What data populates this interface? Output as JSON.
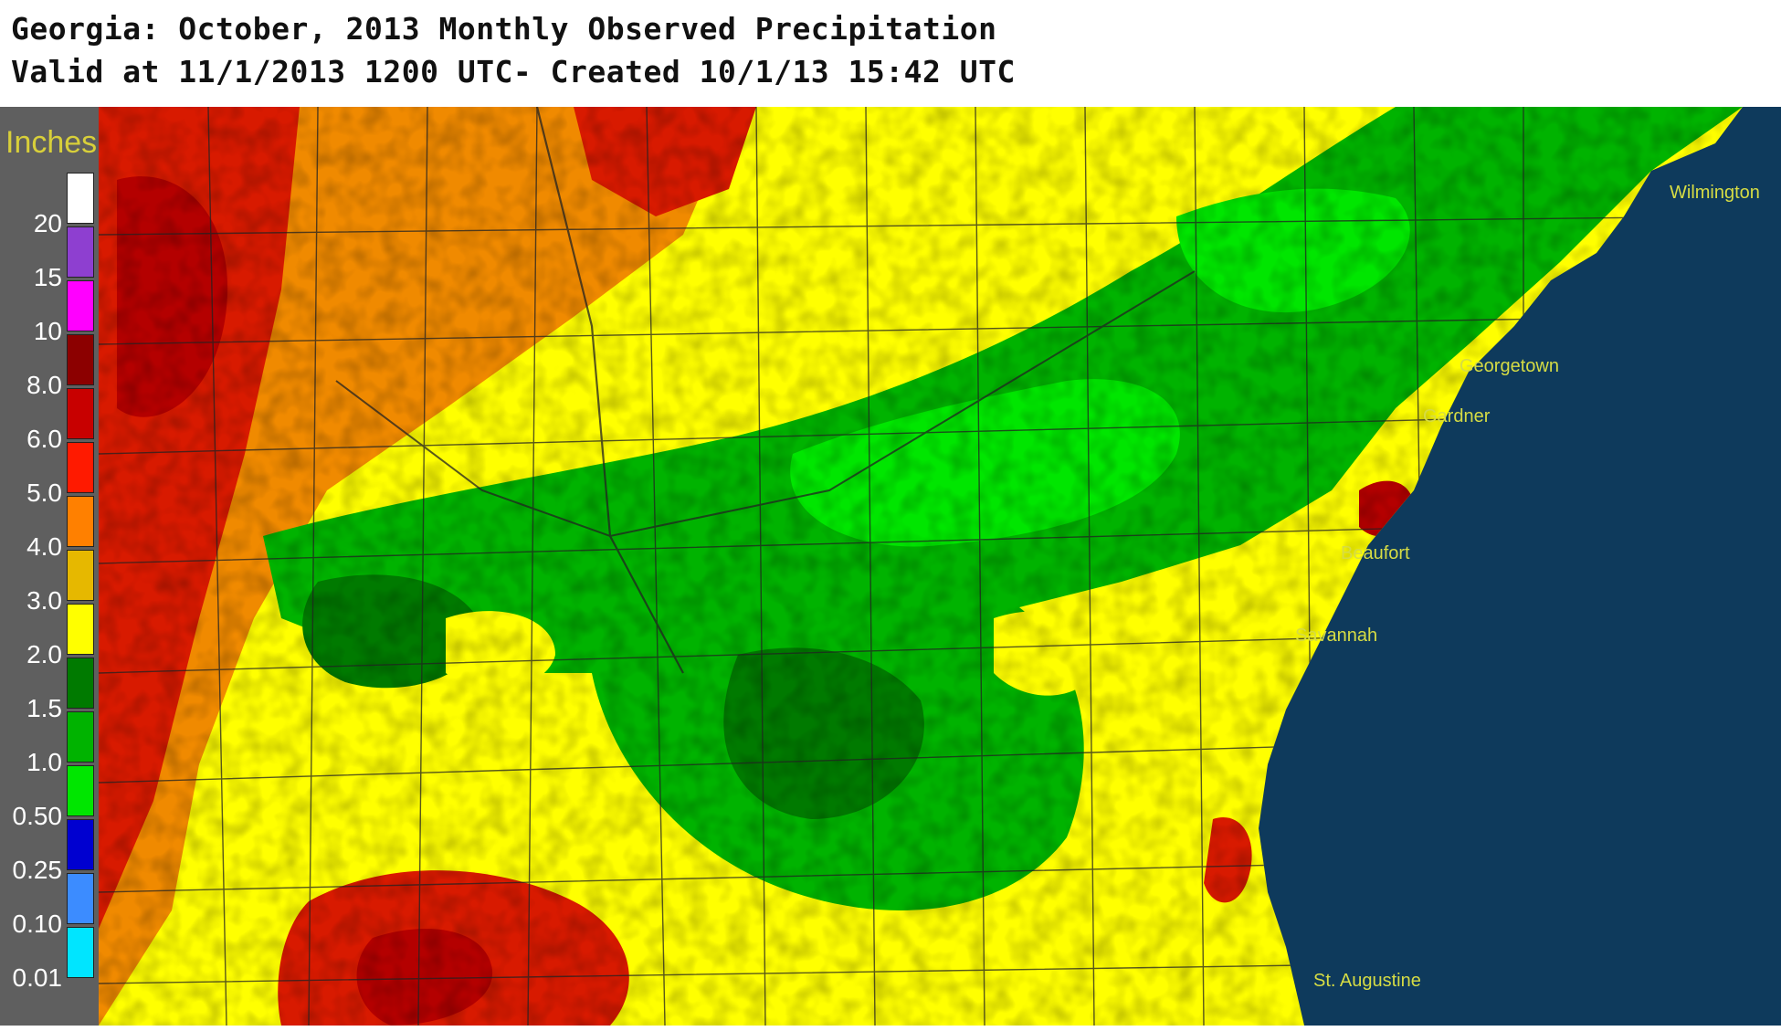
{
  "header": {
    "title": "Georgia: October, 2013 Monthly Observed Precipitation",
    "subtitle": "Valid at 11/1/2013 1200 UTC- Created 10/1/13 15:42 UTC"
  },
  "legend": {
    "title": "Inches",
    "bins": [
      {
        "label": "20",
        "color": "#ffffff"
      },
      {
        "label": "15",
        "color": "#8e3fd0"
      },
      {
        "label": "10",
        "color": "#ff00ff"
      },
      {
        "label": "8.0",
        "color": "#8c0000"
      },
      {
        "label": "6.0",
        "color": "#c80000"
      },
      {
        "label": "5.0",
        "color": "#ff1a00"
      },
      {
        "label": "4.0",
        "color": "#ff8000"
      },
      {
        "label": "3.0",
        "color": "#e6b800"
      },
      {
        "label": "2.0",
        "color": "#ffff00"
      },
      {
        "label": "1.5",
        "color": "#007a00"
      },
      {
        "label": "1.0",
        "color": "#00b300"
      },
      {
        "label": "0.50",
        "color": "#00e600"
      },
      {
        "label": "0.25",
        "color": "#0000d0"
      },
      {
        "label": "0.10",
        "color": "#3c8cff"
      },
      {
        "label": "0.01",
        "color": "#00e5ff"
      }
    ]
  },
  "map": {
    "ocean_color": "#0e3a5c",
    "cities": [
      "Wilmington",
      "Georgetown",
      "Gardner",
      "Beaufort",
      "Savannah",
      "St. Augustine"
    ]
  }
}
